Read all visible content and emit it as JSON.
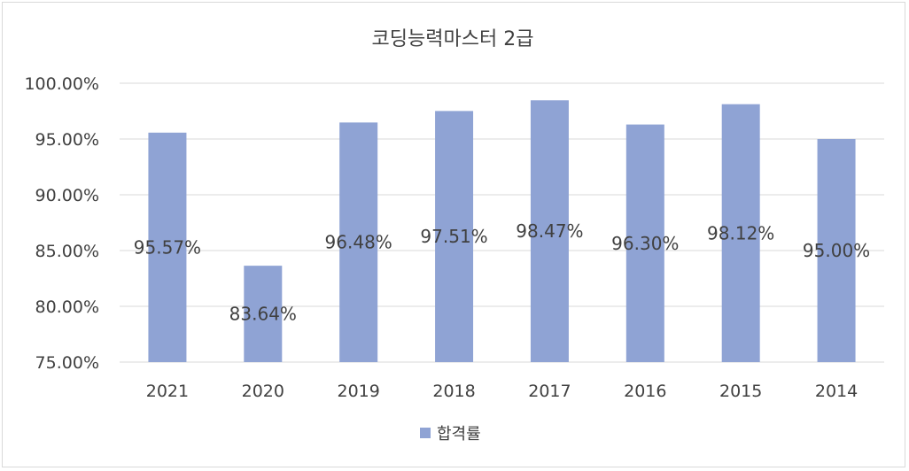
{
  "chart_data": {
    "type": "bar",
    "title": "코딩능력마스터 2급",
    "categories": [
      "2021",
      "2020",
      "2019",
      "2018",
      "2017",
      "2016",
      "2015",
      "2014"
    ],
    "series": [
      {
        "name": "합격률",
        "values": [
          95.57,
          83.64,
          96.48,
          97.51,
          98.47,
          96.3,
          98.12,
          95.0
        ],
        "labels": [
          "95.57%",
          "83.64%",
          "96.48%",
          "97.51%",
          "98.47%",
          "96.30%",
          "98.12%",
          "95.00%"
        ],
        "color": "#8FA3D4"
      }
    ],
    "ylim": [
      75,
      100
    ],
    "yticks": [
      100,
      95,
      90,
      85,
      80,
      75
    ],
    "ytick_labels": [
      "100.00%",
      "95.00%",
      "90.00%",
      "85.00%",
      "80.00%",
      "75.00%"
    ],
    "grid": true,
    "legend_position": "bottom"
  }
}
